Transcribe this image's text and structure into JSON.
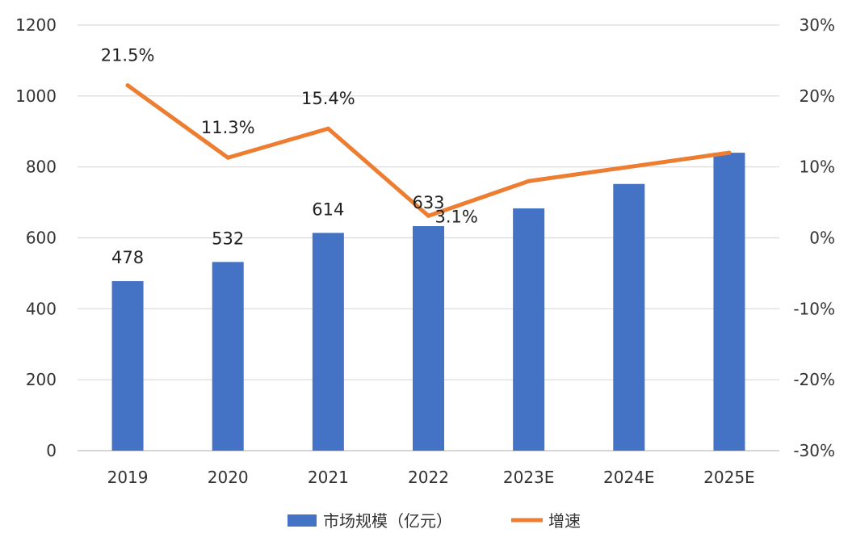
{
  "chart_data": {
    "type": "bar",
    "categories": [
      "2019",
      "2020",
      "2021",
      "2022",
      "2023E",
      "2024E",
      "2025E"
    ],
    "series": [
      {
        "name": "市场规模（亿元）",
        "type": "bar",
        "axis": "left",
        "values": [
          478,
          532,
          614,
          633,
          683,
          752,
          840
        ],
        "labels": [
          "478",
          "532",
          "614",
          "633",
          "",
          "",
          ""
        ],
        "color": "#4472C4"
      },
      {
        "name": "增速",
        "type": "line",
        "axis": "right",
        "values": [
          21.5,
          11.3,
          15.4,
          3.1,
          8.0,
          10.0,
          12.0
        ],
        "labels": [
          "21.5%",
          "11.3%",
          "15.4%",
          "3.1%",
          "",
          "",
          ""
        ],
        "color": "#ED7D31"
      }
    ],
    "ylim": [
      0,
      1200
    ],
    "yticks": [
      "0",
      "200",
      "400",
      "600",
      "800",
      "1000",
      "1200"
    ],
    "y2lim": [
      -30,
      30
    ],
    "y2ticks": [
      "-30%",
      "-20%",
      "-10%",
      "0%",
      "10%",
      "20%",
      "30%"
    ],
    "grid": true,
    "legend_position": "bottom",
    "title": "",
    "xlabel": "",
    "ylabel": ""
  }
}
